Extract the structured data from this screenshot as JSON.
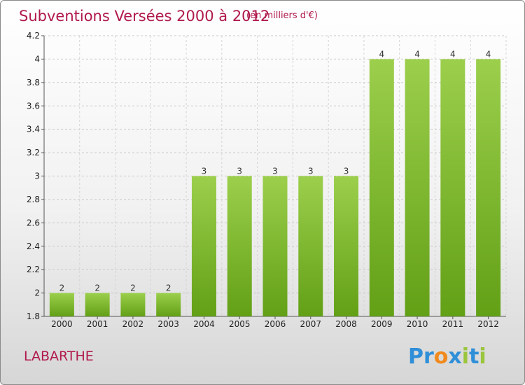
{
  "header": {
    "title": "Subventions Versées 2000 à 2012",
    "unit": "(en milliers d'€)"
  },
  "footer": {
    "commune": "LABARTHE",
    "logo_letters": [
      "P",
      "r",
      "o",
      "x",
      "i",
      "t",
      "i"
    ]
  },
  "colors": {
    "title": "#b0194c",
    "bar_top": "#9ccf4c",
    "bar_bottom": "#62a016",
    "logo": [
      "#2f8fd8",
      "#2f8fd8",
      "#f08a1e",
      "#2f8fd8",
      "#9ac53c",
      "#2f8fd8",
      "#9ac53c"
    ]
  },
  "chart_data": {
    "type": "bar",
    "categories": [
      "2000",
      "2001",
      "2002",
      "2003",
      "2004",
      "2005",
      "2006",
      "2007",
      "2008",
      "2009",
      "2010",
      "2011",
      "2012"
    ],
    "values": [
      2,
      2,
      2,
      2,
      3,
      3,
      3,
      3,
      3,
      4,
      4,
      4,
      4
    ],
    "data_labels": [
      "2",
      "2",
      "2",
      "2",
      "3",
      "3",
      "3",
      "3",
      "3",
      "4",
      "4",
      "4",
      "4"
    ],
    "ylim": [
      1.8,
      4.2
    ],
    "yticks": [
      1.8,
      2,
      2.2,
      2.4,
      2.6,
      2.8,
      3,
      3.2,
      3.4,
      3.6,
      3.8,
      4,
      4.2
    ],
    "ytick_labels": [
      "1.8",
      "2",
      "2.2",
      "2.4",
      "2.6",
      "2.8",
      "3",
      "3.2",
      "3.4",
      "3.6",
      "3.8",
      "4",
      "4.2"
    ],
    "grid": true,
    "title": "Subventions Versées 2000 à 2012",
    "xlabel": "",
    "ylabel": ""
  }
}
